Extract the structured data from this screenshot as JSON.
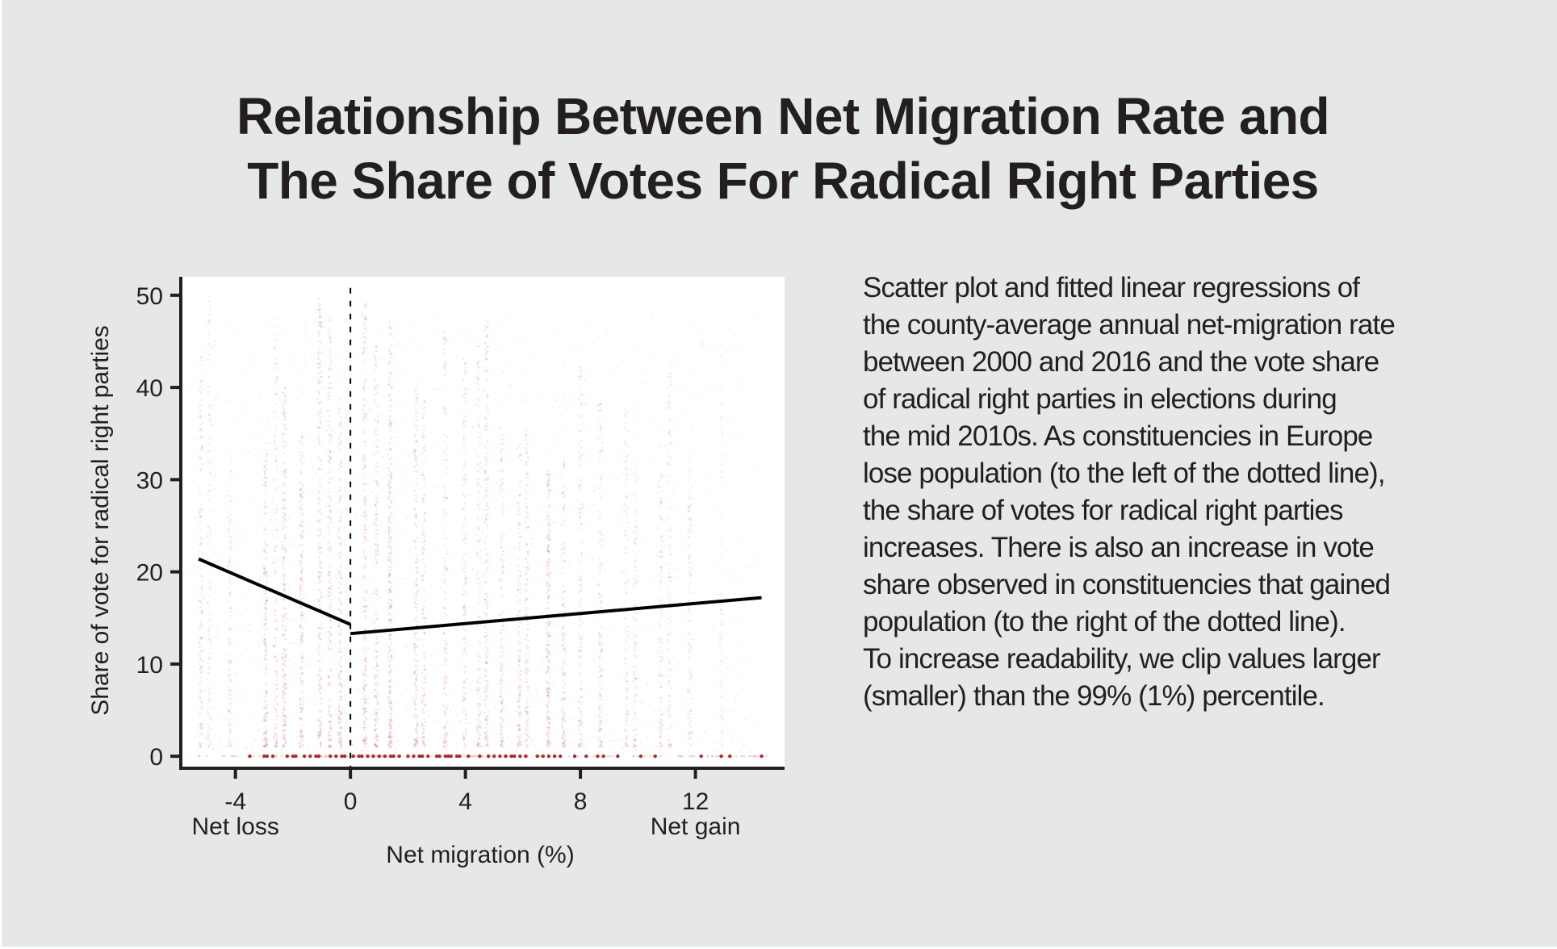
{
  "title": {
    "lines": [
      "Relationship Between Net Migration Rate and",
      "The Share of Votes For Radical Right Parties"
    ]
  },
  "caption": {
    "lines": [
      "Scatter plot and fitted linear regressions of",
      "the county-average annual net-migration rate",
      "between 2000 and 2016 and the vote share",
      "of radical right parties in elections during",
      "the mid 2010s. As constituencies in Europe",
      "lose population (to the left of the dotted line),",
      "the share of votes for radical right parties",
      "increases. There is also an increase in vote",
      "share observed in constituencies that gained",
      "population (to the right of the dotted line).",
      "To increase readability, we clip values larger",
      "(smaller) than the 99% (1%) percentile."
    ]
  },
  "colors": {
    "background": "#e6e7e9",
    "panel": "#ffffff",
    "points": "#a31a1a",
    "lines": "#000000",
    "text": "#231f20"
  },
  "chart_data": {
    "type": "scatter",
    "title": "Relationship Between Net Migration Rate and The Share of Votes For Radical Right Parties",
    "xlabel": "Net migration (%)",
    "ylabel": "Share of vote for radical right parties",
    "xlim": [
      -5.9,
      15.1
    ],
    "ylim": [
      -1.3,
      52
    ],
    "x_ticks": [
      {
        "value": -4,
        "label": "-4"
      },
      {
        "value": 0,
        "label": "0"
      },
      {
        "value": 4,
        "label": "4"
      },
      {
        "value": 8,
        "label": "8"
      },
      {
        "value": 12,
        "label": "12"
      }
    ],
    "y_ticks": [
      {
        "value": 0,
        "label": "0"
      },
      {
        "value": 10,
        "label": "10"
      },
      {
        "value": 20,
        "label": "20"
      },
      {
        "value": 30,
        "label": "30"
      },
      {
        "value": 40,
        "label": "40"
      },
      {
        "value": 50,
        "label": "50"
      }
    ],
    "x_annotations": [
      {
        "value": -4,
        "label": "Net loss"
      },
      {
        "value": 12,
        "label": "Net gain"
      }
    ],
    "reference_line": {
      "x": 0,
      "style": "dashed",
      "y_top": 50.8
    },
    "grid": false,
    "legend": "none",
    "regressions": [
      {
        "name": "net loss fit",
        "x": [
          -5.28,
          0
        ],
        "y": [
          21.4,
          14.3
        ]
      },
      {
        "name": "net gain fit",
        "x": [
          0,
          14.3
        ],
        "y": [
          13.3,
          17.2
        ]
      }
    ],
    "point_streaks": {
      "description_note": "points cluster in vertical streaks at these county net-migration values",
      "x": [
        -5.2,
        -4.9,
        -4.2,
        -2.95,
        -2.6,
        -2.3,
        -1.7,
        -1.07,
        -0.72,
        -0.36,
        0.5,
        0.9,
        1.38,
        2.28,
        2.55,
        3.3,
        3.97,
        4.46,
        4.73,
        5.27,
        5.87,
        6.14,
        6.88,
        7.41,
        8.0,
        8.7,
        9.6,
        9.9,
        10.8,
        11.1,
        11.8,
        12.9
      ],
      "weight": [
        3,
        2,
        2,
        4,
        3,
        5,
        4,
        5,
        4,
        4,
        5,
        4,
        6,
        4,
        3,
        3,
        3,
        3,
        4,
        3,
        3,
        3,
        5,
        3,
        3,
        3,
        2,
        2,
        2,
        2,
        2,
        1
      ]
    },
    "zero_vote_points_x": [
      -3.5,
      -3.0,
      -2.9,
      -2.7,
      -2.2,
      -2.0,
      -1.9,
      -1.6,
      -1.4,
      -1.2,
      -1.1,
      -0.7,
      -0.5,
      -0.3,
      -0.2,
      0.1,
      0.3,
      0.4,
      0.6,
      0.8,
      1.0,
      1.2,
      1.4,
      1.5,
      1.7,
      2.0,
      2.2,
      2.4,
      2.5,
      2.7,
      3.0,
      3.1,
      3.3,
      3.4,
      3.5,
      3.7,
      3.8,
      4.1,
      4.5,
      4.8,
      5.0,
      5.2,
      5.4,
      5.6,
      5.7,
      5.9,
      6.1,
      6.5,
      6.7,
      6.9,
      7.1,
      7.3,
      7.8,
      8.2,
      8.6,
      8.8,
      9.3,
      10.1,
      10.6,
      12.2,
      12.9,
      13.2,
      14.3
    ]
  }
}
